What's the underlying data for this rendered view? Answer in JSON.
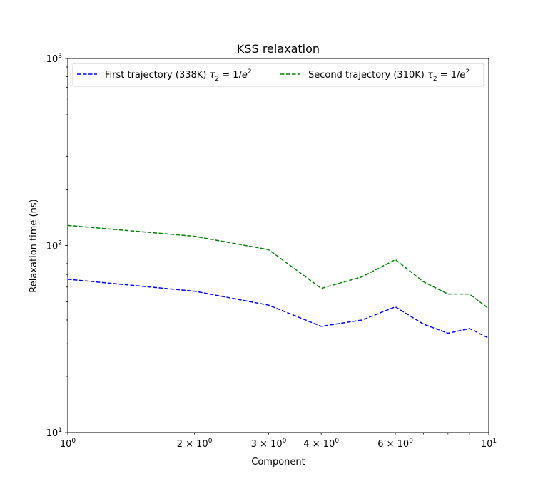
{
  "chart_data": {
    "type": "line",
    "title": "KSS relaxation",
    "xlabel": "Component",
    "ylabel": "Relaxation time (ns)",
    "xscale": "log",
    "yscale": "log",
    "xlim": [
      1,
      10
    ],
    "ylim": [
      10,
      1000
    ],
    "grid": false,
    "legend": "top, two columns",
    "x": [
      1,
      2,
      3,
      4,
      5,
      6,
      7,
      8,
      9,
      10
    ],
    "x_ticks": [
      {
        "value": 1,
        "base": "10",
        "exp": "0"
      },
      {
        "value": 2,
        "base": "2 × 10",
        "exp": "0"
      },
      {
        "value": 3,
        "base": "3 × 10",
        "exp": "0"
      },
      {
        "value": 4,
        "base": "4 × 10",
        "exp": "0"
      },
      {
        "value": 6,
        "base": "6 × 10",
        "exp": "0"
      },
      {
        "value": 10,
        "base": "10",
        "exp": "1"
      }
    ],
    "y_ticks": [
      {
        "value": 10,
        "base": "10",
        "exp": "1"
      },
      {
        "value": 100,
        "base": "10",
        "exp": "2"
      },
      {
        "value": 1000,
        "base": "10",
        "exp": "3"
      }
    ],
    "series": [
      {
        "name": "First trajectory (338K) τ₂ = 1/e²",
        "name_prefix": "First trajectory (338K) ",
        "color": "#0000ff",
        "style": "dashed",
        "values": [
          66,
          57,
          48,
          37,
          40,
          47,
          38,
          34,
          36,
          32
        ]
      },
      {
        "name": "Second trajectory (310K) τ₂ = 1/e²",
        "name_prefix": "Second trajectory (310K) ",
        "color": "#008000",
        "style": "dashed",
        "values": [
          128,
          112,
          95,
          59,
          68,
          84,
          64,
          55,
          55,
          46
        ]
      }
    ]
  }
}
